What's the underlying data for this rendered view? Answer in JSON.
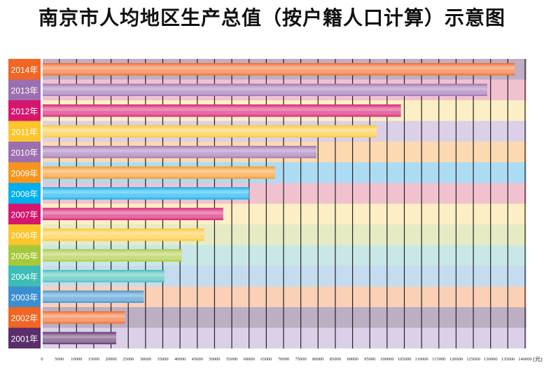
{
  "chart_data": {
    "type": "bar",
    "orientation": "horizontal",
    "title": "南京市人均地区生产总值（按户籍人口计算）示意图",
    "xlabel": "(元)",
    "ylabel": "",
    "xlim": [
      0,
      140000
    ],
    "xticks": [
      0,
      5000,
      10000,
      15000,
      20000,
      25000,
      30000,
      35000,
      40000,
      45000,
      50000,
      55000,
      60000,
      65000,
      70000,
      75000,
      80000,
      85000,
      90000,
      95000,
      100000,
      105000,
      110000,
      115000,
      120000,
      125000,
      130000,
      135000,
      140000
    ],
    "grid": true,
    "categories": [
      "2014年",
      "2013年",
      "2012年",
      "2011年",
      "2010年",
      "2009年",
      "2008年",
      "2007年",
      "2006年",
      "2005年",
      "2004年",
      "2003年",
      "2002年",
      "2001年"
    ],
    "values": [
      137000,
      129000,
      104000,
      97000,
      79500,
      67500,
      60000,
      52500,
      47000,
      40500,
      35500,
      29500,
      24000,
      21500
    ],
    "label_colors": [
      "#f26522",
      "#9b6fb0",
      "#d6156e",
      "#fdc52c",
      "#9b6fb0",
      "#f7941d",
      "#00aeef",
      "#d6156e",
      "#fdc52c",
      "#a8c83b",
      "#3dbdb5",
      "#3b8fd0",
      "#f26522",
      "#5a2d6b"
    ],
    "band_colors": [
      "#bfaec5",
      "#f2c1cf",
      "#fcefc5",
      "#dcd0e8",
      "#fcd9b0",
      "#acdcf4",
      "#f2c1cf",
      "#fcefc5",
      "#e6ebc4",
      "#c9e7e6",
      "#c5dcf0",
      "#fbd0b5",
      "#bcaec3",
      "#dcd0e8"
    ]
  }
}
